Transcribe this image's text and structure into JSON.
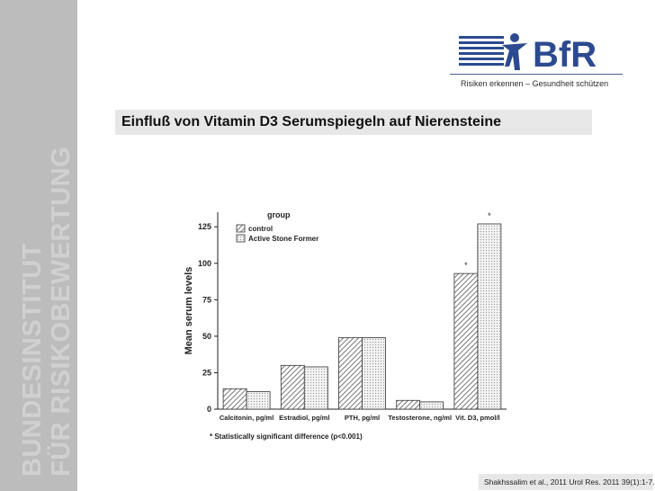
{
  "sidebar": {
    "line1": "BUNDESINSTITUT",
    "line2": "FÜR RISIKOBEWERTUNG"
  },
  "logo": {
    "name": "BfR",
    "tagline": "Risiken erkennen – Gesundheit schützen"
  },
  "slide": {
    "title": "Einfluß von Vitamin D3 Serumspiegeln auf Nierensteine"
  },
  "citation": "Shakhssalim et al., 2011 Urol Res. 2011 39(1):1-7.",
  "colors": {
    "brand_blue": "#2c4a8f",
    "sidebar_grey": "#bcbcbc"
  },
  "chart_data": {
    "type": "bar",
    "categories": [
      "Calcitonin, pg/ml",
      "Estradiol, pg/ml",
      "PTH, pg/ml",
      "Testosterone, ng/ml",
      "Vit. D3, pmol/l"
    ],
    "series": [
      {
        "name": "control",
        "values": [
          14,
          30,
          49,
          6,
          93
        ]
      },
      {
        "name": "Active Stone Former",
        "values": [
          12,
          29,
          49,
          5,
          127
        ]
      }
    ],
    "significant": [
      false,
      false,
      false,
      false,
      true
    ],
    "significance_marker": "*",
    "ylabel": "Mean serum levels",
    "xlabel": "",
    "ylim": [
      0,
      135
    ],
    "yticks": [
      0,
      25,
      50,
      75,
      100,
      125
    ],
    "legend_title": "group",
    "legend_position": "top-left",
    "footnote": "* Statistically significant difference (p<0.001)",
    "grid": false
  }
}
